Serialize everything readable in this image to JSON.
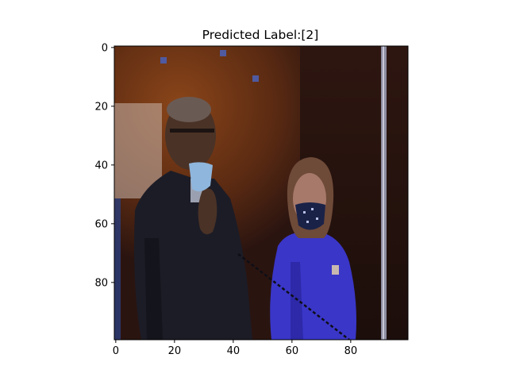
{
  "chart_data": {
    "type": "heatmap",
    "title": "Predicted Label:[2]",
    "xlabel": "",
    "ylabel": "",
    "image_size": [
      100,
      100
    ],
    "xlim": [
      -0.5,
      99.5
    ],
    "ylim": [
      99.5,
      -0.5
    ],
    "x_ticks": [
      0,
      20,
      40,
      60,
      80
    ],
    "y_ticks": [
      0,
      20,
      40,
      60,
      80
    ],
    "grid": false,
    "content": "pixelated photograph of two people standing in front of a dark reddish-brown background; the man on the left wears a dark suit and a light blue face mask, the woman on the right wears a bright blue outfit and a dark patterned face mask",
    "colors": {
      "background_dark": "#2a1712",
      "background_orange": "#7a3a17",
      "suit_dark": "#1c1c26",
      "blue_outfit": "#3a36c8",
      "skin_dark": "#4a3226",
      "mask_light_blue": "#8fb6dc",
      "mask_dark": "#1a2248",
      "pole_gray": "#8c8ca0"
    }
  }
}
